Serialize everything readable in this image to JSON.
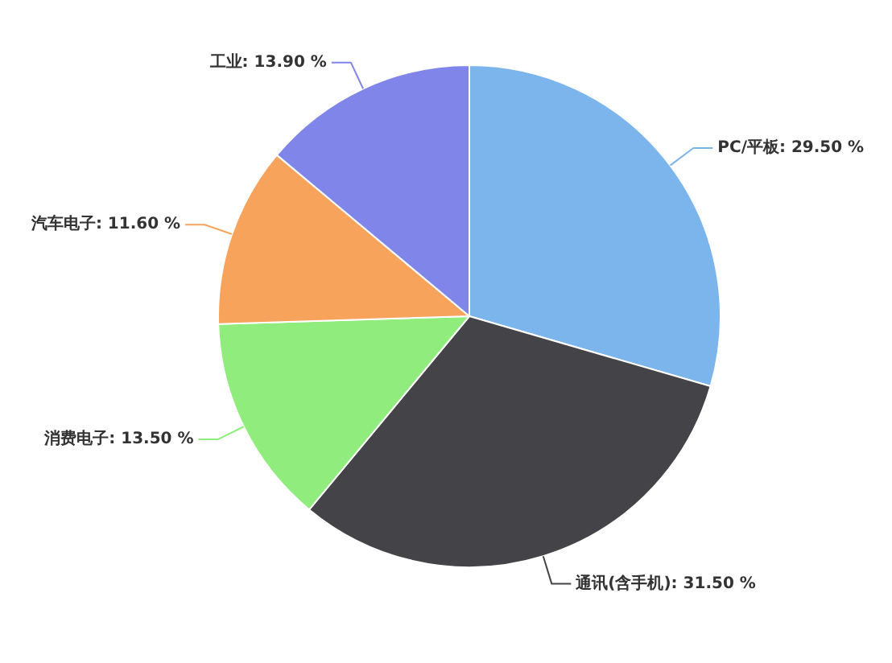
{
  "chart_data": {
    "type": "pie",
    "categories": [
      "PC/平板",
      "通讯(含手机)",
      "消费电子",
      "汽车电子",
      "工业"
    ],
    "values": [
      29.5,
      31.5,
      13.5,
      11.6,
      13.9
    ],
    "colors": [
      "#7cb5ec",
      "#434348",
      "#90ed7d",
      "#f7a35c",
      "#8085e9"
    ],
    "value_labels": [
      "29.50 %",
      "31.50 %",
      "13.50 %",
      "11.60 %",
      "13.90 %"
    ],
    "legend": false
  }
}
